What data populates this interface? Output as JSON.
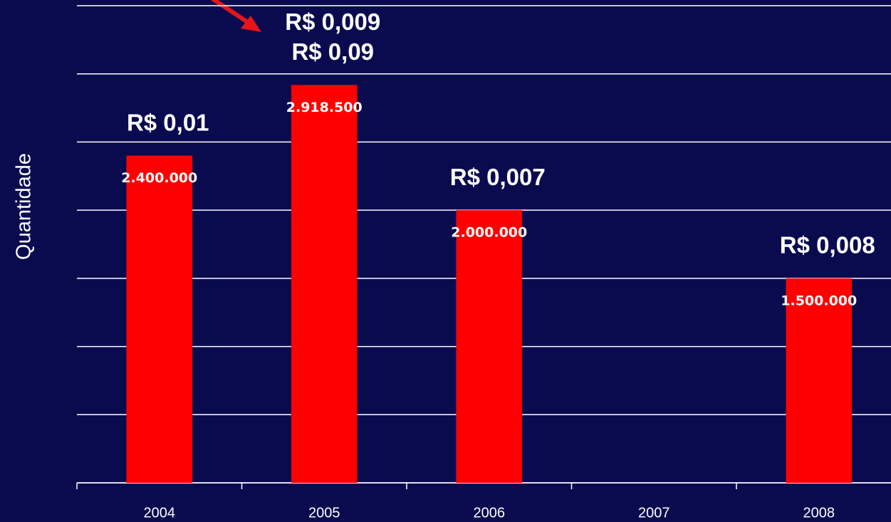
{
  "chart_data": {
    "type": "bar",
    "y_label": "Quantidade",
    "categories": [
      "2004",
      "2005",
      "2006",
      "2007",
      "2008"
    ],
    "values": [
      2400000,
      2918500,
      2000000,
      null,
      1500000
    ],
    "value_labels": [
      "2.400.000",
      "2.918.500",
      "2.000.000",
      null,
      "1.500.000"
    ],
    "color": "#ff0000",
    "ylim": [
      0,
      3500000
    ],
    "yticks": [
      0,
      500000,
      1000000,
      1500000,
      2000000,
      2500000,
      3000000,
      3500000
    ],
    "grid": true,
    "annotations": [
      {
        "category": "2004",
        "text": "R$ 0,01"
      },
      {
        "category": "2005",
        "text": "R$ 0,009"
      },
      {
        "category": "2005",
        "text": "R$ 0,09"
      },
      {
        "category": "2006",
        "text": "R$ 0,007"
      },
      {
        "category": "2008",
        "text": "R$ 0,008"
      }
    ]
  }
}
